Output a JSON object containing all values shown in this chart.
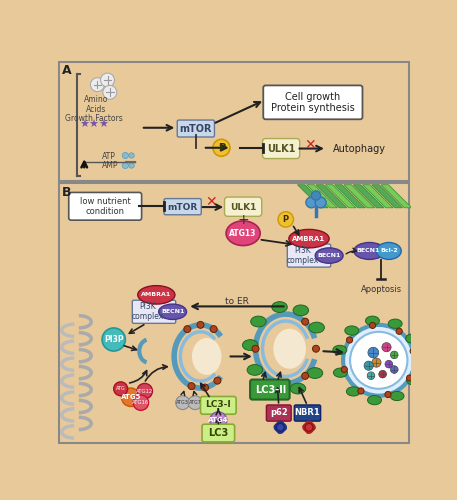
{
  "bg_color": "#e8c99a",
  "white": "#ffffff",
  "mtor_box_color": "#c8d8e8",
  "ulk1_box_color": "#f5f0d0",
  "panel_a_label": "A",
  "panel_b_label": "B",
  "mtor_text": "mTOR",
  "ulk1_text": "ULK1",
  "cell_growth_text": "Cell growth\nProtein synthesis",
  "autophagy_text": "Autophagy",
  "amino_acids_text": "Amino\nAcids",
  "growth_factors_text": "Growth Factors",
  "low_nutrient_text": "low nutrient\ncondition",
  "atg13_text": "ATG13",
  "ambra1_text": "AMBRA1",
  "pi3k_text": "PI3K\ncomplex",
  "becn1_text": "BECN1",
  "bcl2_text": "Bcl-2",
  "apoptosis_text": "Apoptosis",
  "to_er_text": "to ER",
  "pi3p_text": "PI3P",
  "atg5_text": "ATG5",
  "lc3_text": "LC3",
  "lc3i_text": "LC3-I",
  "lc3ii_text": "LC3-II",
  "p62_text": "p62",
  "nbr1_text": "NBR1",
  "atg4_text": "ATG4",
  "red_x_color": "#cc2222",
  "green_color": "#3a9a3a",
  "blue_color": "#5588cc",
  "teal_color": "#44aaaa",
  "purple_color": "#7744aa",
  "pink_color": "#e0457a",
  "orange_color": "#e07830",
  "yellow_color": "#f0c030",
  "gray_color": "#aaaaaa",
  "ambra1_color": "#cc3344",
  "becn1_color": "#6655aa",
  "pi3k_box_color": "#e8e8f5",
  "atg12_color": "#cc4455",
  "atg16_color": "#dd5566",
  "brown_color": "#885533"
}
